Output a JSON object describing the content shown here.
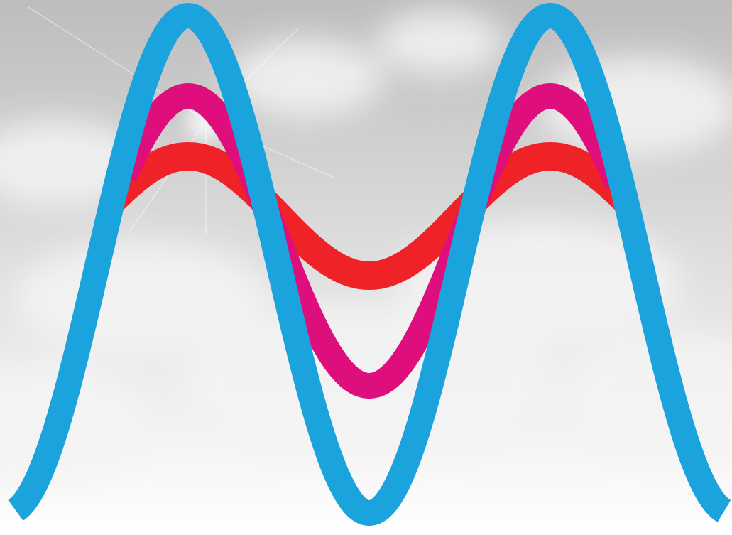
{
  "image": {
    "subject": "cloudy-sky-with-three-wave-lines"
  },
  "colors": {
    "sky_top": "#bdbdbd",
    "sky_mid": "#dcdcdc",
    "sky_bottom": "#ffffff",
    "cloud": "#f4f4f4",
    "wave_blue": "#1aa3dd",
    "wave_magenta": "#df0e7d",
    "wave_red": "#ee2227"
  }
}
